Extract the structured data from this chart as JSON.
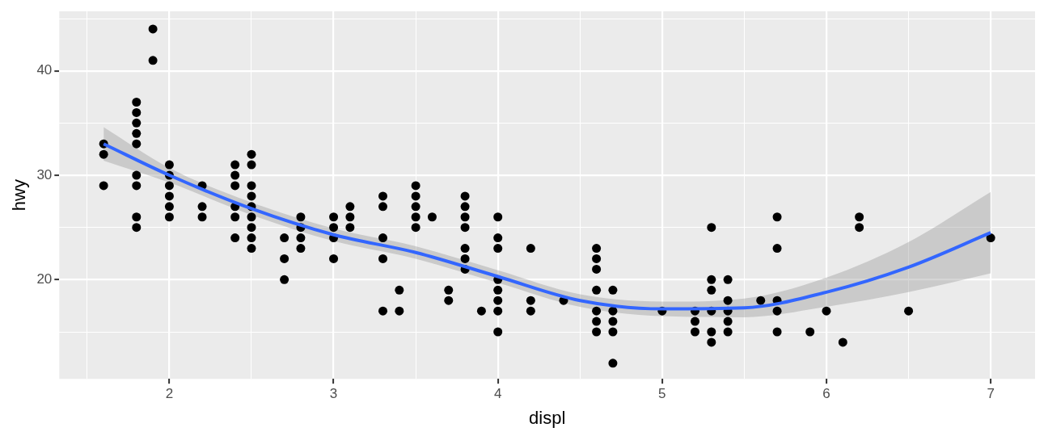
{
  "chart_data": {
    "type": "scatter",
    "xlabel": "displ",
    "ylabel": "hwy",
    "xlim": [
      1.33,
      7.27
    ],
    "ylim": [
      10.5,
      45.7
    ],
    "xticks": [
      {
        "value": 1.5,
        "label": null
      },
      2,
      {
        "value": 2.5,
        "label": null
      },
      3,
      {
        "value": 3.5,
        "label": null
      },
      4,
      {
        "value": 4.5,
        "label": null
      },
      5,
      {
        "value": 5.5,
        "label": null
      },
      6,
      {
        "value": 6.5,
        "label": null
      },
      7
    ],
    "yticks": [
      {
        "value": 15,
        "label": null
      },
      20,
      {
        "value": 25,
        "label": null
      },
      30,
      {
        "value": 35,
        "label": null
      },
      40,
      {
        "value": 45,
        "label": null
      }
    ],
    "grid": true,
    "legend": false,
    "marker": "circle",
    "series": [
      {
        "type": "scatter",
        "color": "#000000",
        "x": [
          1.6,
          1.6,
          1.6,
          1.8,
          1.8,
          1.8,
          1.8,
          1.8,
          1.8,
          1.8,
          1.8,
          1.8,
          1.9,
          1.9,
          2.0,
          2.0,
          2.0,
          2.0,
          2.0,
          2.0,
          2.2,
          2.2,
          2.2,
          2.4,
          2.4,
          2.4,
          2.4,
          2.4,
          2.4,
          2.5,
          2.5,
          2.5,
          2.5,
          2.5,
          2.5,
          2.5,
          2.5,
          2.5,
          2.7,
          2.7,
          2.7,
          2.8,
          2.8,
          2.8,
          2.8,
          3.0,
          3.0,
          3.0,
          3.0,
          3.1,
          3.1,
          3.1,
          3.3,
          3.3,
          3.3,
          3.3,
          3.3,
          3.4,
          3.4,
          3.5,
          3.5,
          3.5,
          3.5,
          3.5,
          3.6,
          3.7,
          3.7,
          3.8,
          3.8,
          3.8,
          3.8,
          3.8,
          3.8,
          3.8,
          3.9,
          4.0,
          4.0,
          4.0,
          4.0,
          4.0,
          4.0,
          4.0,
          4.0,
          4.2,
          4.2,
          4.2,
          4.4,
          4.6,
          4.6,
          4.6,
          4.6,
          4.6,
          4.6,
          4.6,
          4.7,
          4.7,
          4.7,
          4.7,
          4.7,
          5.0,
          5.2,
          5.2,
          5.2,
          5.3,
          5.3,
          5.3,
          5.3,
          5.3,
          5.3,
          5.4,
          5.4,
          5.4,
          5.4,
          5.4,
          5.6,
          5.7,
          5.7,
          5.7,
          5.7,
          5.7,
          5.9,
          6.0,
          6.1,
          6.2,
          6.2,
          6.5,
          7.0
        ],
        "values": [
          33,
          32,
          29,
          37,
          36,
          35,
          34,
          33,
          30,
          29,
          26,
          25,
          44,
          41,
          31,
          30,
          29,
          28,
          27,
          26,
          29,
          27,
          26,
          31,
          30,
          29,
          27,
          26,
          24,
          32,
          31,
          29,
          28,
          27,
          26,
          25,
          24,
          23,
          24,
          22,
          20,
          26,
          25,
          24,
          23,
          26,
          25,
          24,
          22,
          27,
          26,
          25,
          28,
          27,
          24,
          22,
          17,
          19,
          17,
          29,
          28,
          27,
          26,
          25,
          26,
          19,
          18,
          28,
          27,
          26,
          25,
          23,
          22,
          21,
          17,
          26,
          24,
          23,
          20,
          19,
          18,
          17,
          15,
          23,
          18,
          17,
          18,
          23,
          22,
          21,
          19,
          17,
          16,
          15,
          19,
          17,
          16,
          15,
          12,
          17,
          17,
          16,
          15,
          25,
          20,
          19,
          17,
          15,
          14,
          20,
          18,
          17,
          16,
          15,
          18,
          26,
          23,
          18,
          17,
          15,
          15,
          17,
          14,
          26,
          25,
          17,
          24
        ]
      },
      {
        "type": "line",
        "color": "#3366ff",
        "marker": "none",
        "x": [
          1.6,
          2,
          2.5,
          3,
          3.5,
          4,
          4.5,
          5,
          5.5,
          6,
          6.5,
          7
        ],
        "values": [
          33,
          30,
          26.8,
          24.3,
          22.6,
          20.3,
          18,
          17.2,
          17.3,
          18.8,
          21.2,
          24.5
        ],
        "lower": [
          31.4,
          29.3,
          26.2,
          23.7,
          22,
          19.7,
          17.4,
          16.5,
          16.4,
          17.4,
          18.8,
          20.6
        ],
        "upper": [
          34.6,
          30.7,
          27.4,
          24.9,
          23.2,
          20.9,
          18.6,
          17.9,
          18.2,
          20.2,
          23.6,
          28.4
        ]
      }
    ]
  }
}
